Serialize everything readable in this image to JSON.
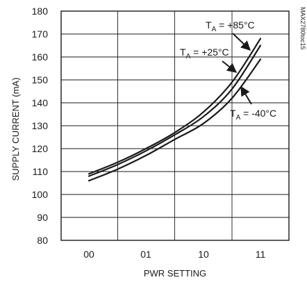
{
  "chart_data": {
    "type": "line",
    "xlabel": "PWR SETTING",
    "ylabel": "SUPPLY CURRENT (mA)",
    "part_id": "MAX2780toc15",
    "categories": [
      "00",
      "01",
      "10",
      "11"
    ],
    "ylim": [
      80,
      180
    ],
    "yticks": [
      80,
      90,
      100,
      110,
      120,
      130,
      140,
      150,
      160,
      170,
      180
    ],
    "grid": true,
    "series": [
      {
        "name": "T_A = +85°C",
        "label_main": "T",
        "label_sub": "A",
        "label_rest": " = +85°C",
        "x": [
          0,
          0.5,
          1,
          1.5,
          2,
          2.5,
          3
        ],
        "values": [
          109,
          114,
          120,
          127,
          136,
          149,
          168
        ]
      },
      {
        "name": "T_A = +25°C",
        "label_main": "T",
        "label_sub": "A",
        "label_rest": " = +25°C",
        "x": [
          0,
          0.5,
          1,
          1.5,
          2,
          2.5,
          3
        ],
        "values": [
          108,
          113,
          119,
          126,
          134,
          146,
          165
        ]
      },
      {
        "name": "T_A = -40°C",
        "label_main": "T",
        "label_sub": "A",
        "label_rest": " = -40°C",
        "x": [
          0,
          0.5,
          1,
          1.5,
          2,
          2.5,
          3
        ],
        "values": [
          106,
          111,
          117,
          124,
          131,
          142,
          159
        ]
      }
    ]
  }
}
